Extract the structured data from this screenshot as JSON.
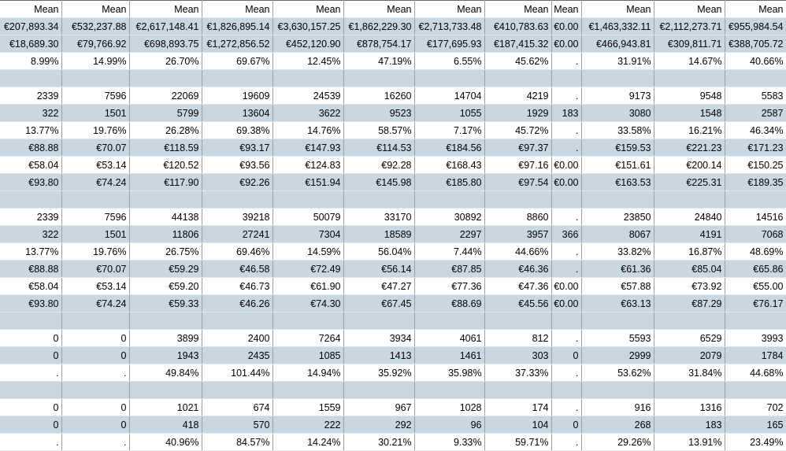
{
  "colors": {
    "band": "#c9d7e3",
    "plain": "#ffffff",
    "gridline": "#9e9e9e"
  },
  "table": {
    "rows": [
      {
        "style": "w",
        "top": true,
        "cells": [
          "Mean",
          "Mean",
          "Mean",
          "Mean",
          "Mean",
          "Mean",
          "Mean",
          "Mean",
          "Mean",
          "Mean",
          "Mean",
          "Mean"
        ]
      },
      {
        "style": "b",
        "cells": [
          "€207,893.34",
          "€532,237.88",
          "€2,617,148.41",
          "€1,826,895.14",
          "€3,630,157.25",
          "€1,862,229.30",
          "€2,713,733.48",
          "€410,783.63",
          "€0.00",
          "€1,463,332.11",
          "€2,112,273.71",
          "€955,984.54"
        ]
      },
      {
        "style": "b",
        "cells": [
          "€18,689.30",
          "€79,766.92",
          "€698,893.75",
          "€1,272,856.52",
          "€452,120.90",
          "€878,754.17",
          "€177,695.93",
          "€187,415.32",
          "€0.00",
          "€466,943.81",
          "€309,811.71",
          "€388,705.72"
        ]
      },
      {
        "style": "w",
        "cells": [
          "8.99%",
          "14.99%",
          "26.70%",
          "69.67%",
          "12.45%",
          "47.19%",
          "6.55%",
          "45.62%",
          ".",
          "31.91%",
          "14.67%",
          "40.66%"
        ]
      },
      {
        "style": "b",
        "top": true,
        "cells": [
          "",
          "",
          "",
          "",
          "",
          "",
          "",
          "",
          "",
          "",
          "",
          ""
        ]
      },
      {
        "style": "w",
        "top": true,
        "cells": [
          "2339",
          "7596",
          "22069",
          "19609",
          "24539",
          "16260",
          "14704",
          "4219",
          ".",
          "9173",
          "9548",
          "5583"
        ]
      },
      {
        "style": "b",
        "cells": [
          "322",
          "1501",
          "5799",
          "13604",
          "3622",
          "9523",
          "1055",
          "1929",
          "183",
          "3080",
          "1548",
          "2587"
        ]
      },
      {
        "style": "w",
        "cells": [
          "13.77%",
          "19.76%",
          "26.28%",
          "69.38%",
          "14.76%",
          "58.57%",
          "7.17%",
          "45.72%",
          ".",
          "33.58%",
          "16.21%",
          "46.34%"
        ]
      },
      {
        "style": "b",
        "cells": [
          "€88.88",
          "€70.07",
          "€118.59",
          "€93.17",
          "€147.93",
          "€114.53",
          "€184.56",
          "€97.37",
          ".",
          "€159.53",
          "€221.23",
          "€171.23"
        ]
      },
      {
        "style": "w",
        "cells": [
          "€58.04",
          "€53.14",
          "€120.52",
          "€93.56",
          "€124.83",
          "€92.28",
          "€168.43",
          "€97.16",
          "€0.00",
          "€151.61",
          "€200.14",
          "€150.25"
        ]
      },
      {
        "style": "b",
        "cells": [
          "€93.80",
          "€74.24",
          "€117.90",
          "€92.26",
          "€151.94",
          "€145.98",
          "€185.80",
          "€97.54",
          "€0.00",
          "€163.53",
          "€225.31",
          "€189.35"
        ]
      },
      {
        "style": "b",
        "top": true,
        "cells": [
          "",
          "",
          "",
          "",
          "",
          "",
          "",
          "",
          "",
          "",
          "",
          ""
        ]
      },
      {
        "style": "w",
        "top": true,
        "cells": [
          "2339",
          "7596",
          "44138",
          "39218",
          "50079",
          "33170",
          "30892",
          "8860",
          ".",
          "23850",
          "24840",
          "14516"
        ]
      },
      {
        "style": "b",
        "cells": [
          "322",
          "1501",
          "11806",
          "27241",
          "7304",
          "18589",
          "2297",
          "3957",
          "366",
          "8067",
          "4191",
          "7068"
        ]
      },
      {
        "style": "w",
        "cells": [
          "13.77%",
          "19.76%",
          "26.75%",
          "69.46%",
          "14.59%",
          "56.04%",
          "7.44%",
          "44.66%",
          ".",
          "33.82%",
          "16.87%",
          "48.69%"
        ]
      },
      {
        "style": "b",
        "cells": [
          "€88.88",
          "€70.07",
          "€59.29",
          "€46.58",
          "€72.49",
          "€56.14",
          "€87.85",
          "€46.36",
          ".",
          "€61.36",
          "€85.04",
          "€65.86"
        ]
      },
      {
        "style": "w",
        "cells": [
          "€58.04",
          "€53.14",
          "€59.20",
          "€46.73",
          "€61.90",
          "€47.27",
          "€77.36",
          "€47.36",
          "€0.00",
          "€57.88",
          "€73.92",
          "€55.00"
        ]
      },
      {
        "style": "b",
        "cells": [
          "€93.80",
          "€74.24",
          "€59.33",
          "€46.26",
          "€74.30",
          "€67.45",
          "€88.69",
          "€45.56",
          "€0.00",
          "€63.13",
          "€87.29",
          "€76.17"
        ]
      },
      {
        "style": "b",
        "top": true,
        "cells": [
          "",
          "",
          "",
          "",
          "",
          "",
          "",
          "",
          "",
          "",
          "",
          ""
        ]
      },
      {
        "style": "w",
        "top": true,
        "cells": [
          "0",
          "0",
          "3899",
          "2400",
          "7264",
          "3934",
          "4061",
          "812",
          ".",
          "5593",
          "6529",
          "3993"
        ]
      },
      {
        "style": "b",
        "cells": [
          "0",
          "0",
          "1943",
          "2435",
          "1085",
          "1413",
          "1461",
          "303",
          "0",
          "2999",
          "2079",
          "1784"
        ]
      },
      {
        "style": "w",
        "cells": [
          ".",
          ".",
          "49.84%",
          "101.44%",
          "14.94%",
          "35.92%",
          "35.98%",
          "37.33%",
          ".",
          "53.62%",
          "31.84%",
          "44.68%"
        ]
      },
      {
        "style": "b",
        "top": true,
        "cells": [
          "",
          "",
          "",
          "",
          "",
          "",
          "",
          "",
          "",
          "",
          "",
          ""
        ]
      },
      {
        "style": "w",
        "top": true,
        "cells": [
          "0",
          "0",
          "1021",
          "674",
          "1559",
          "967",
          "1028",
          "174",
          ".",
          "916",
          "1316",
          "702"
        ]
      },
      {
        "style": "b",
        "cells": [
          "0",
          "0",
          "418",
          "570",
          "222",
          "292",
          "96",
          "104",
          "0",
          "268",
          "183",
          "165"
        ]
      },
      {
        "style": "w",
        "cells": [
          ".",
          ".",
          "40.96%",
          "84.57%",
          "14.24%",
          "30.21%",
          "9.33%",
          "59.71%",
          ".",
          "29.26%",
          "13.91%",
          "23.49%"
        ]
      }
    ]
  }
}
